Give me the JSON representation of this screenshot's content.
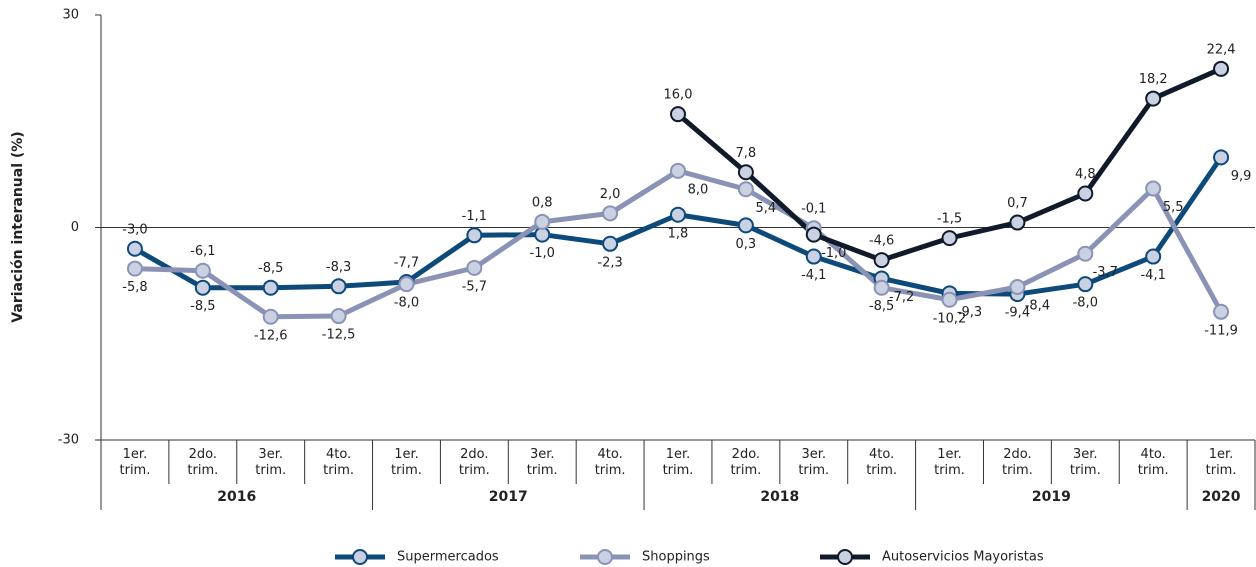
{
  "chart_data": {
    "type": "line",
    "y_label": "Variación interanual (%)",
    "categories": [
      "1er. trim.",
      "2do. trim.",
      "3er. trim.",
      "4to. trim.",
      "1er. trim.",
      "2do. trim.",
      "3er. trim.",
      "4to. trim.",
      "1er. trim.",
      "2do. trim.",
      "3er. trim.",
      "4to. trim.",
      "1er. trim.",
      "2do. trim.",
      "3er. trim.",
      "4to. trim.",
      "1er. trim."
    ],
    "groups": [
      {
        "label": "2016",
        "span": 4
      },
      {
        "label": "2017",
        "span": 4
      },
      {
        "label": "2018",
        "span": 4
      },
      {
        "label": "2019",
        "span": 4
      },
      {
        "label": "2020",
        "span": 1
      }
    ],
    "ylim": [
      -30,
      30
    ],
    "yticks": [
      -30,
      0,
      30
    ],
    "series": [
      {
        "name": "Supermercados",
        "color": "#0d4a7a",
        "values": [
          -3.0,
          -8.5,
          -8.5,
          -8.3,
          -7.7,
          -1.1,
          -1.0,
          -2.3,
          1.8,
          0.3,
          -4.1,
          -7.2,
          -9.3,
          -9.4,
          -8.0,
          -4.1,
          9.9
        ],
        "value_labels": [
          "-3,0",
          "-8,5",
          "-8,5",
          "-8,3",
          "-7,7",
          "-1,1",
          "-1,0",
          "-2,3",
          "1,8",
          "0,3",
          "-4,1",
          "-7,2",
          "-9,3",
          "-9,4",
          "-8,0",
          "-4,1",
          "9,9"
        ]
      },
      {
        "name": "Shoppings",
        "color": "#8a93b5",
        "values": [
          -5.8,
          -6.1,
          -12.6,
          -12.5,
          -8.0,
          -5.7,
          0.8,
          2.0,
          8.0,
          5.4,
          -0.1,
          -8.5,
          -10.2,
          -8.4,
          -3.7,
          5.5,
          -11.9
        ],
        "value_labels": [
          "-5,8",
          "-6,1",
          "-12,6",
          "-12,5",
          "-8,0",
          "-5,7",
          "0,8",
          "2,0",
          "8,0",
          "5,4",
          "-0,1",
          "-8,5",
          "-10,2",
          "-8,4",
          "-3,7",
          "5,5",
          "-11,9"
        ]
      },
      {
        "name": "Autoservicios Mayoristas",
        "color": "#111a2b",
        "values": [
          null,
          null,
          null,
          null,
          null,
          null,
          null,
          null,
          16.0,
          7.8,
          -1.0,
          -4.6,
          -1.5,
          0.7,
          4.8,
          18.2,
          22.4
        ],
        "value_labels": [
          null,
          null,
          null,
          null,
          null,
          null,
          null,
          null,
          "16,0",
          "7,8",
          "-1,0",
          "-4,6",
          "-1,5",
          "0,7",
          "4,8",
          "18,2",
          "22,4"
        ]
      }
    ]
  }
}
